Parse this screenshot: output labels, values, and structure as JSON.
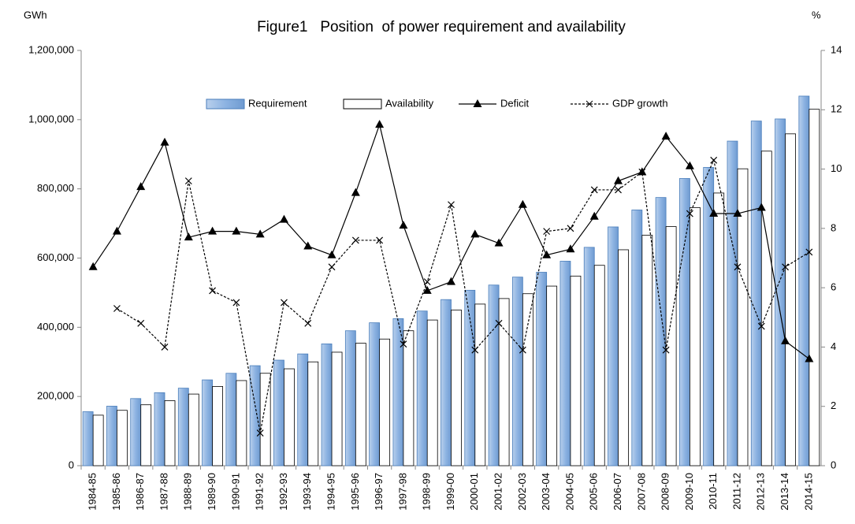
{
  "chart_data": {
    "type": "bar",
    "title": "Figure1   Position  of power requirement and availability",
    "ylabel": "GWh",
    "y2label": "%",
    "categories": [
      "1984-85",
      "1985-86",
      "1986-87",
      "1987-88",
      "1988-89",
      "1989-90",
      "1990-91",
      "1991-92",
      "1992-93",
      "1993-94",
      "1994-95",
      "1995-96",
      "1996-97",
      "1997-98",
      "1998-99",
      "1999-00",
      "2000-01",
      "2001-02",
      "2002-03",
      "2003-04",
      "2004-05",
      "2005-06",
      "2006-07",
      "2007-08",
      "2008-09",
      "2009-10",
      "2010-11",
      "2011-12",
      "2012-13",
      "2013-14",
      "2014-15"
    ],
    "series": [
      {
        "name": "Requirement",
        "type": "bar",
        "color": "#8db3e2",
        "values": [
          156000,
          172000,
          194000,
          211000,
          224000,
          248000,
          267000,
          289000,
          305000,
          323000,
          352000,
          390000,
          413000,
          425000,
          447000,
          480000,
          507000,
          522000,
          545000,
          559000,
          591000,
          631000,
          690000,
          739000,
          775000,
          830000,
          862000,
          938000,
          996000,
          1002000,
          1068000
        ]
      },
      {
        "name": "Availability",
        "type": "bar",
        "color": "#ffffff",
        "values": [
          146000,
          160000,
          176000,
          188000,
          207000,
          229000,
          246000,
          267000,
          280000,
          300000,
          328000,
          354000,
          366000,
          390000,
          421000,
          450000,
          467000,
          483000,
          497000,
          519000,
          548000,
          579000,
          624000,
          666000,
          691000,
          746000,
          788000,
          858000,
          909000,
          959000,
          1030000
        ]
      },
      {
        "name": "Deficit",
        "type": "line",
        "axis": "y2",
        "color": "#000000",
        "marker": "triangle",
        "values": [
          6.7,
          7.9,
          9.4,
          10.9,
          7.7,
          7.9,
          7.9,
          7.8,
          8.3,
          7.4,
          7.1,
          9.2,
          11.5,
          8.1,
          5.9,
          6.2,
          7.8,
          7.5,
          8.8,
          7.1,
          7.3,
          8.4,
          9.6,
          9.9,
          11.1,
          10.1,
          8.5,
          8.5,
          8.7,
          4.2,
          3.6
        ]
      },
      {
        "name": "GDP growth",
        "type": "line",
        "axis": "y2",
        "color": "#000000",
        "marker": "x",
        "dashed": true,
        "values": [
          null,
          5.3,
          4.8,
          4.0,
          9.6,
          5.9,
          5.5,
          1.1,
          5.5,
          4.8,
          6.7,
          7.6,
          7.6,
          4.1,
          6.2,
          8.8,
          3.9,
          4.8,
          3.9,
          7.9,
          8.0,
          9.3,
          9.3,
          9.9,
          3.9,
          8.5,
          10.3,
          6.7,
          4.7,
          6.7,
          7.2
        ]
      }
    ],
    "ylim": [
      0,
      1200000
    ],
    "yticks": [
      0,
      {
        "value": 200000,
        "label": "200,000"
      },
      {
        "value": 400000,
        "label": "400,000"
      },
      {
        "value": 600000,
        "label": "600,000"
      },
      {
        "value": 800000,
        "label": "800,000"
      },
      {
        "value": 1000000,
        "label": "1,000,000"
      },
      {
        "value": 1200000,
        "label": "1,200,000"
      }
    ],
    "y2lim": [
      0,
      14
    ],
    "y2ticks": [
      0,
      2,
      4,
      6,
      8,
      10,
      12,
      14
    ],
    "legend": "top"
  }
}
